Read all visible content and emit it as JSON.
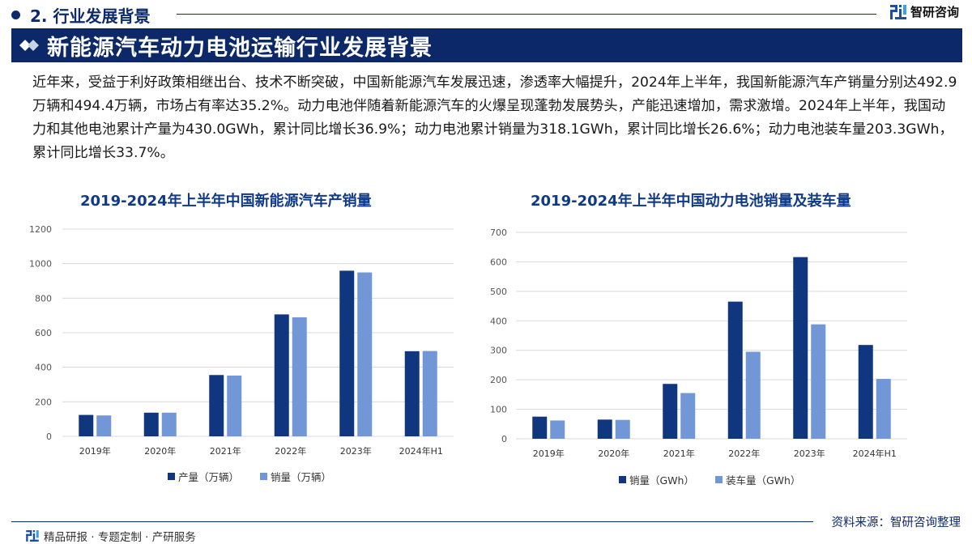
{
  "header": {
    "section_title": "2. 行业发展背景",
    "brand_name": "智研咨询",
    "banner_title": "新能源汽车动力电池运输行业发展背景"
  },
  "intro": {
    "paragraph": "近年来，受益于利好政策相继出台、技术不断突破，中国新能源汽车发展迅速，渗透率大幅提升，2024年上半年，我国新能源汽车产销量分别达492.9万辆和494.4万辆，市场占有率达35.2%。动力电池伴随着新能源汽车的火爆呈现蓬勃发展势头，产能迅速增加，需求激增。2024年上半年，我国动力和其他电池累计产量为430.0GWh，累计同比增长36.9%；动力电池累计销量为318.1GWh，累计同比增长26.6%；动力电池装车量203.3GWh，累计同比增长33.7%。"
  },
  "colors": {
    "navy": "#0d2868",
    "series_dark": "#10367f",
    "series_light": "#7297d6",
    "title_blue": "#113a86",
    "grid": "#d9d9d9"
  },
  "chart_data": [
    {
      "type": "bar",
      "title": "2019-2024年上半年中国新能源汽车产销量",
      "categories": [
        "2019年",
        "2020年",
        "2021年",
        "2022年",
        "2023年",
        "2024年H1"
      ],
      "series": [
        {
          "name": "产量（万辆）",
          "values": [
            124,
            137,
            355,
            706,
            959,
            493
          ]
        },
        {
          "name": "销量（万辆）",
          "values": [
            121,
            137,
            352,
            689,
            949,
            494
          ]
        }
      ],
      "yticks": [
        0,
        200,
        400,
        600,
        800,
        1000,
        1200
      ],
      "ylim": [
        0,
        1200
      ],
      "xlabel": "",
      "ylabel": "",
      "grid": true,
      "legend_position": "bottom"
    },
    {
      "type": "bar",
      "title": "2019-2024年上半年中国动力电池销量及装车量",
      "categories": [
        "2019年",
        "2020年",
        "2021年",
        "2022年",
        "2023年",
        "2024年H1"
      ],
      "series": [
        {
          "name": "销量（GWh）",
          "values": [
            75,
            65,
            186,
            465,
            616,
            318
          ]
        },
        {
          "name": "装车量（GWh）",
          "values": [
            62,
            64,
            155,
            295,
            388,
            203
          ]
        }
      ],
      "yticks": [
        0,
        100,
        200,
        300,
        400,
        500,
        600,
        700
      ],
      "ylim": [
        0,
        700
      ],
      "xlabel": "",
      "ylabel": "",
      "grid": true,
      "legend_position": "bottom"
    }
  ],
  "footer": {
    "source": "资料来源：智研咨询整理",
    "slogan": "精品研报 · 专题定制 · 产研服务"
  }
}
